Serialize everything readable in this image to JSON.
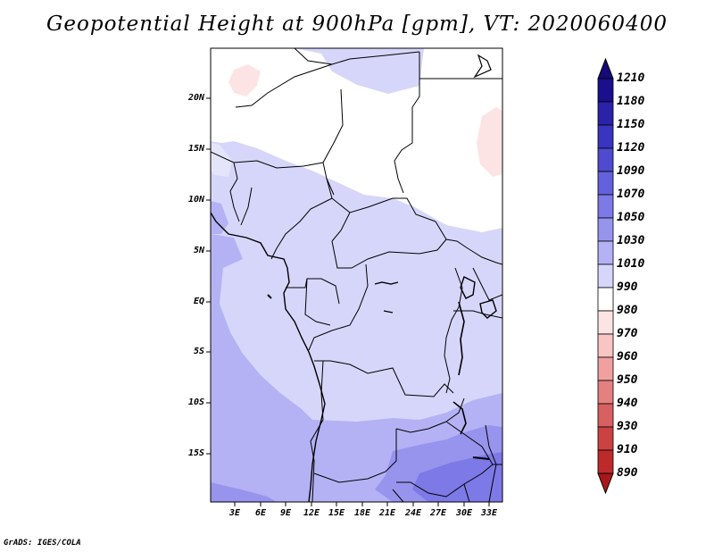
{
  "title": "Geopotential Height at 900hPa [gpm], VT: 2020060400",
  "lat_labels": [
    "20N",
    "15N",
    "10N",
    "5N",
    "EQ",
    "5S",
    "10S",
    "15S"
  ],
  "lon_labels": [
    "3E",
    "6E",
    "9E",
    "12E",
    "15E",
    "18E",
    "21E",
    "24E",
    "27E",
    "30E",
    "33E"
  ],
  "colorbar": {
    "labels": [
      "1210",
      "1180",
      "1150",
      "1120",
      "1090",
      "1070",
      "1050",
      "1030",
      "1010",
      "990",
      "980",
      "970",
      "960",
      "950",
      "940",
      "930",
      "910",
      "890"
    ],
    "colors": [
      "#1a0f8c",
      "#2a22a8",
      "#3b34c0",
      "#4f4ad0",
      "#6560dc",
      "#7d79e6",
      "#9794ee",
      "#b4b2f4",
      "#d6d6fa",
      "#ffffff",
      "#fde4e4",
      "#f8c4c4",
      "#f0a0a0",
      "#e48080",
      "#d86060",
      "#cc4242",
      "#be2a2a",
      "#a81818"
    ]
  },
  "credit": "GrADS: IGES/COLA"
}
